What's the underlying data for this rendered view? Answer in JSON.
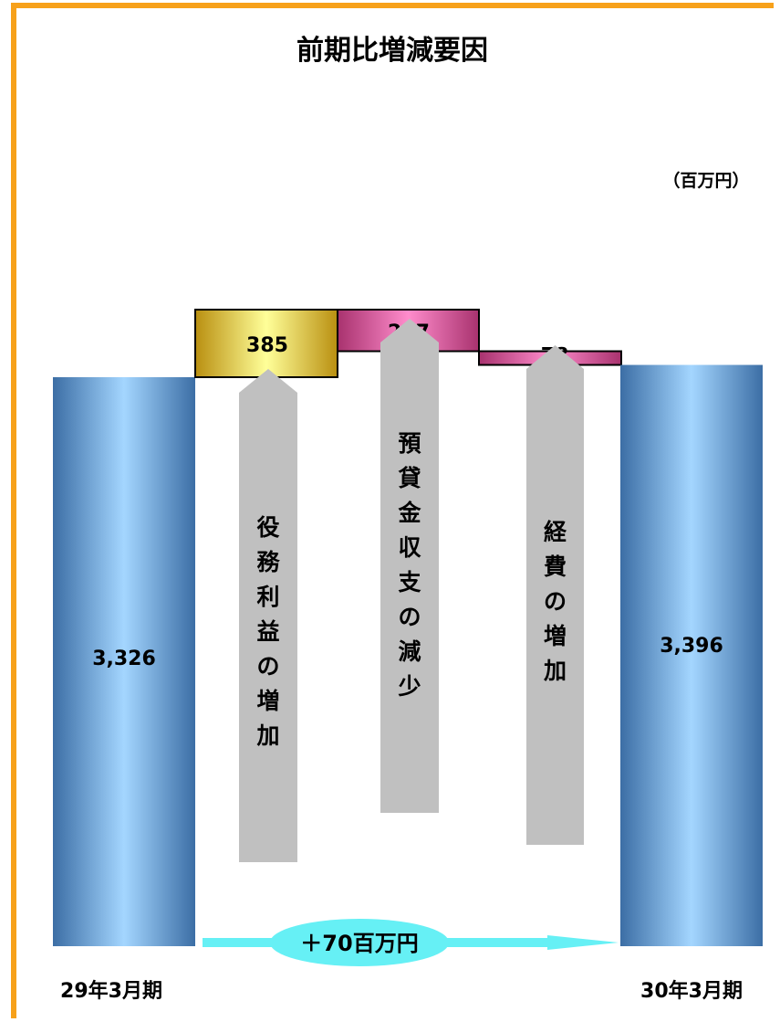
{
  "chart_data": {
    "type": "waterfall",
    "title": "前期比増減要因",
    "unit": "（百万円）",
    "start": {
      "label": "29年3月期",
      "value": 3326,
      "value_label": "3,326"
    },
    "end": {
      "label": "30年3月期",
      "value": 3396,
      "value_label": "3,396"
    },
    "steps": [
      {
        "label": "役務利益の増加",
        "value": 385,
        "value_label": "385",
        "color": "#e6c23a"
      },
      {
        "label": "預貸金収支の減少",
        "value": -237,
        "value_label": "237",
        "color": "#d35a9a"
      },
      {
        "label": "経費の増加",
        "value": -78,
        "value_label": "78",
        "color": "#d35a9a"
      }
    ],
    "change_label": "＋70百万円",
    "colors": {
      "total": "#5e8fc4",
      "frame": "#f7a11a",
      "arrow": "#c0c0c0",
      "change": "#66f0f5"
    }
  }
}
